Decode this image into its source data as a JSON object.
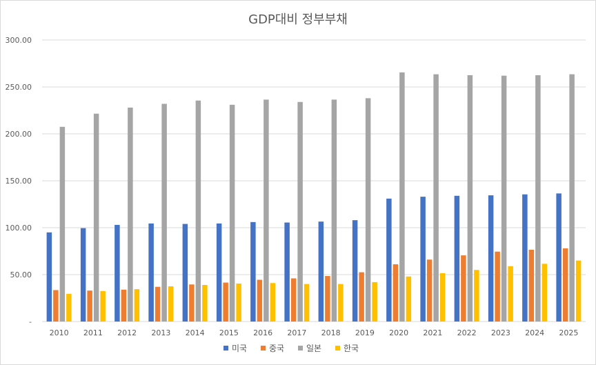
{
  "chart_data": {
    "type": "bar",
    "title": "GDP대비 정부부채",
    "xlabel": "",
    "ylabel": "",
    "categories": [
      "2010",
      "2011",
      "2012",
      "2013",
      "2014",
      "2015",
      "2016",
      "2017",
      "2018",
      "2019",
      "2020",
      "2021",
      "2022",
      "2023",
      "2024",
      "2025"
    ],
    "y_ticks": [
      "-",
      "50.00",
      "100.00",
      "150.00",
      "200.00",
      "250.00",
      "300.00"
    ],
    "ylim": [
      0,
      300
    ],
    "grid": true,
    "legend_position": "bottom",
    "series": [
      {
        "name": "미국",
        "color": "#4472c4",
        "values": [
          95,
          99.5,
          103,
          104.5,
          104,
          104.5,
          106,
          105.5,
          106.5,
          108,
          131,
          133,
          134,
          134.5,
          135.5,
          136.5
        ]
      },
      {
        "name": "중국",
        "color": "#ed7d31",
        "values": [
          33.5,
          33,
          34,
          37,
          39.5,
          41.5,
          44.5,
          46,
          48.5,
          52.5,
          61,
          66,
          70.5,
          74.5,
          76.5,
          78
        ]
      },
      {
        "name": "일본",
        "color": "#a5a5a5",
        "values": [
          207.5,
          221.5,
          228,
          232,
          235.5,
          231,
          236.5,
          234,
          236.5,
          238,
          265.5,
          263.5,
          262.5,
          262,
          262.5,
          263.5
        ]
      },
      {
        "name": "한국",
        "color": "#ffc000",
        "values": [
          29.5,
          32.5,
          34.5,
          37.5,
          39,
          40.5,
          41,
          40,
          40,
          42,
          48,
          51.5,
          55,
          59,
          61.5,
          65
        ]
      }
    ]
  }
}
